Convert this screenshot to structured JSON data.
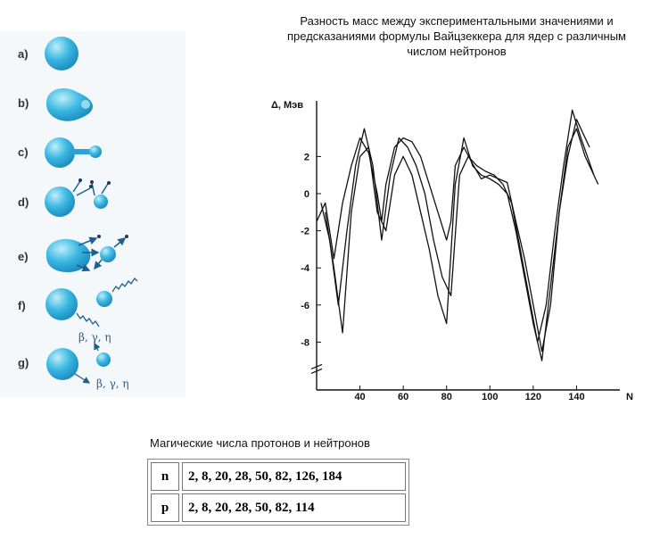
{
  "fission_stages": [
    {
      "label": "a)"
    },
    {
      "label": "b)"
    },
    {
      "label": "c)"
    },
    {
      "label": "d)"
    },
    {
      "label": "e)"
    },
    {
      "label": "f)",
      "radiation": "β, γ, η"
    },
    {
      "label": "g)",
      "radiation": "β, γ, η"
    }
  ],
  "chart_title": [
    "Разность масс между экспериментальными значениями и",
    "предсказаниями формулы Вайцзеккера для ядер с различным",
    "числом нейтронов"
  ],
  "colors": {
    "nucleus_dark": "#1f8fc2",
    "nucleus_light": "#bfeefa",
    "curve": "#111111",
    "arrow": "#1e5f8f"
  },
  "chart_data": {
    "type": "line",
    "xlabel": "N",
    "ylabel": "Δ, Мэв",
    "x_ticks": [
      40,
      60,
      80,
      100,
      120,
      140
    ],
    "y_ticks": [
      2,
      0,
      -2,
      -4,
      -6,
      -8
    ],
    "xlim": [
      20,
      160
    ],
    "ylim": [
      -10,
      5
    ],
    "axis_break": true,
    "grid": false,
    "series": [
      {
        "x": [
          20,
          24,
          28,
          32,
          36,
          40,
          44,
          48,
          50,
          52,
          56,
          60,
          64,
          68,
          72,
          76,
          80,
          82,
          84,
          88,
          92,
          96,
          100,
          104,
          108,
          112,
          116,
          120,
          124,
          128,
          132,
          136,
          140,
          144,
          150
        ],
        "y": [
          -1.5,
          -0.5,
          -3.5,
          -0.5,
          1.5,
          3.0,
          2.2,
          0.0,
          -1.5,
          0.5,
          2.5,
          3.0,
          2.8,
          2.0,
          0.5,
          -1.0,
          -2.5,
          -1.5,
          1.5,
          2.5,
          1.6,
          0.8,
          1.0,
          0.8,
          0.6,
          -1.5,
          -3.5,
          -6.0,
          -8.5,
          -6.0,
          -1.0,
          2.5,
          3.5,
          2.0,
          0.5
        ]
      },
      {
        "x": [
          22,
          26,
          30,
          34,
          38,
          42,
          46,
          50,
          54,
          58,
          62,
          66,
          70,
          74,
          78,
          82,
          86,
          90,
          94,
          98,
          102,
          106,
          110,
          114,
          118,
          122,
          126,
          130,
          134,
          138,
          142,
          148
        ],
        "y": [
          -0.5,
          -2.5,
          -6.0,
          -2.0,
          1.5,
          3.5,
          1.5,
          -2.5,
          1.0,
          3.0,
          2.5,
          1.5,
          0.0,
          -2.5,
          -4.5,
          -5.5,
          1.0,
          2.0,
          1.5,
          1.2,
          1.0,
          0.5,
          -0.5,
          -3.0,
          -5.5,
          -8.0,
          -6.0,
          -2.0,
          1.5,
          4.5,
          3.0,
          1.0
        ]
      },
      {
        "x": [
          24,
          28,
          32,
          36,
          40,
          44,
          48,
          52,
          56,
          60,
          64,
          68,
          72,
          76,
          80,
          84,
          88,
          92,
          96,
          100,
          104,
          108,
          112,
          116,
          120,
          124,
          128,
          132,
          136,
          140,
          146
        ],
        "y": [
          -1.0,
          -4.0,
          -7.5,
          -1.0,
          2.0,
          2.5,
          -1.0,
          -2.0,
          1.0,
          2.0,
          1.0,
          -1.0,
          -3.0,
          -5.5,
          -7.0,
          0.5,
          3.0,
          1.5,
          1.0,
          0.8,
          0.5,
          0.0,
          -2.0,
          -4.5,
          -7.0,
          -9.0,
          -5.0,
          -1.0,
          2.0,
          4.0,
          2.5
        ]
      }
    ]
  },
  "table": {
    "caption": "Магические числа протонов и нейтронов",
    "rows": [
      {
        "kind": "n",
        "values": "2, 8, 20, 28, 50, 82, 126, 184"
      },
      {
        "kind": "p",
        "values": "2, 8, 20, 28, 50, 82, 114"
      }
    ]
  }
}
